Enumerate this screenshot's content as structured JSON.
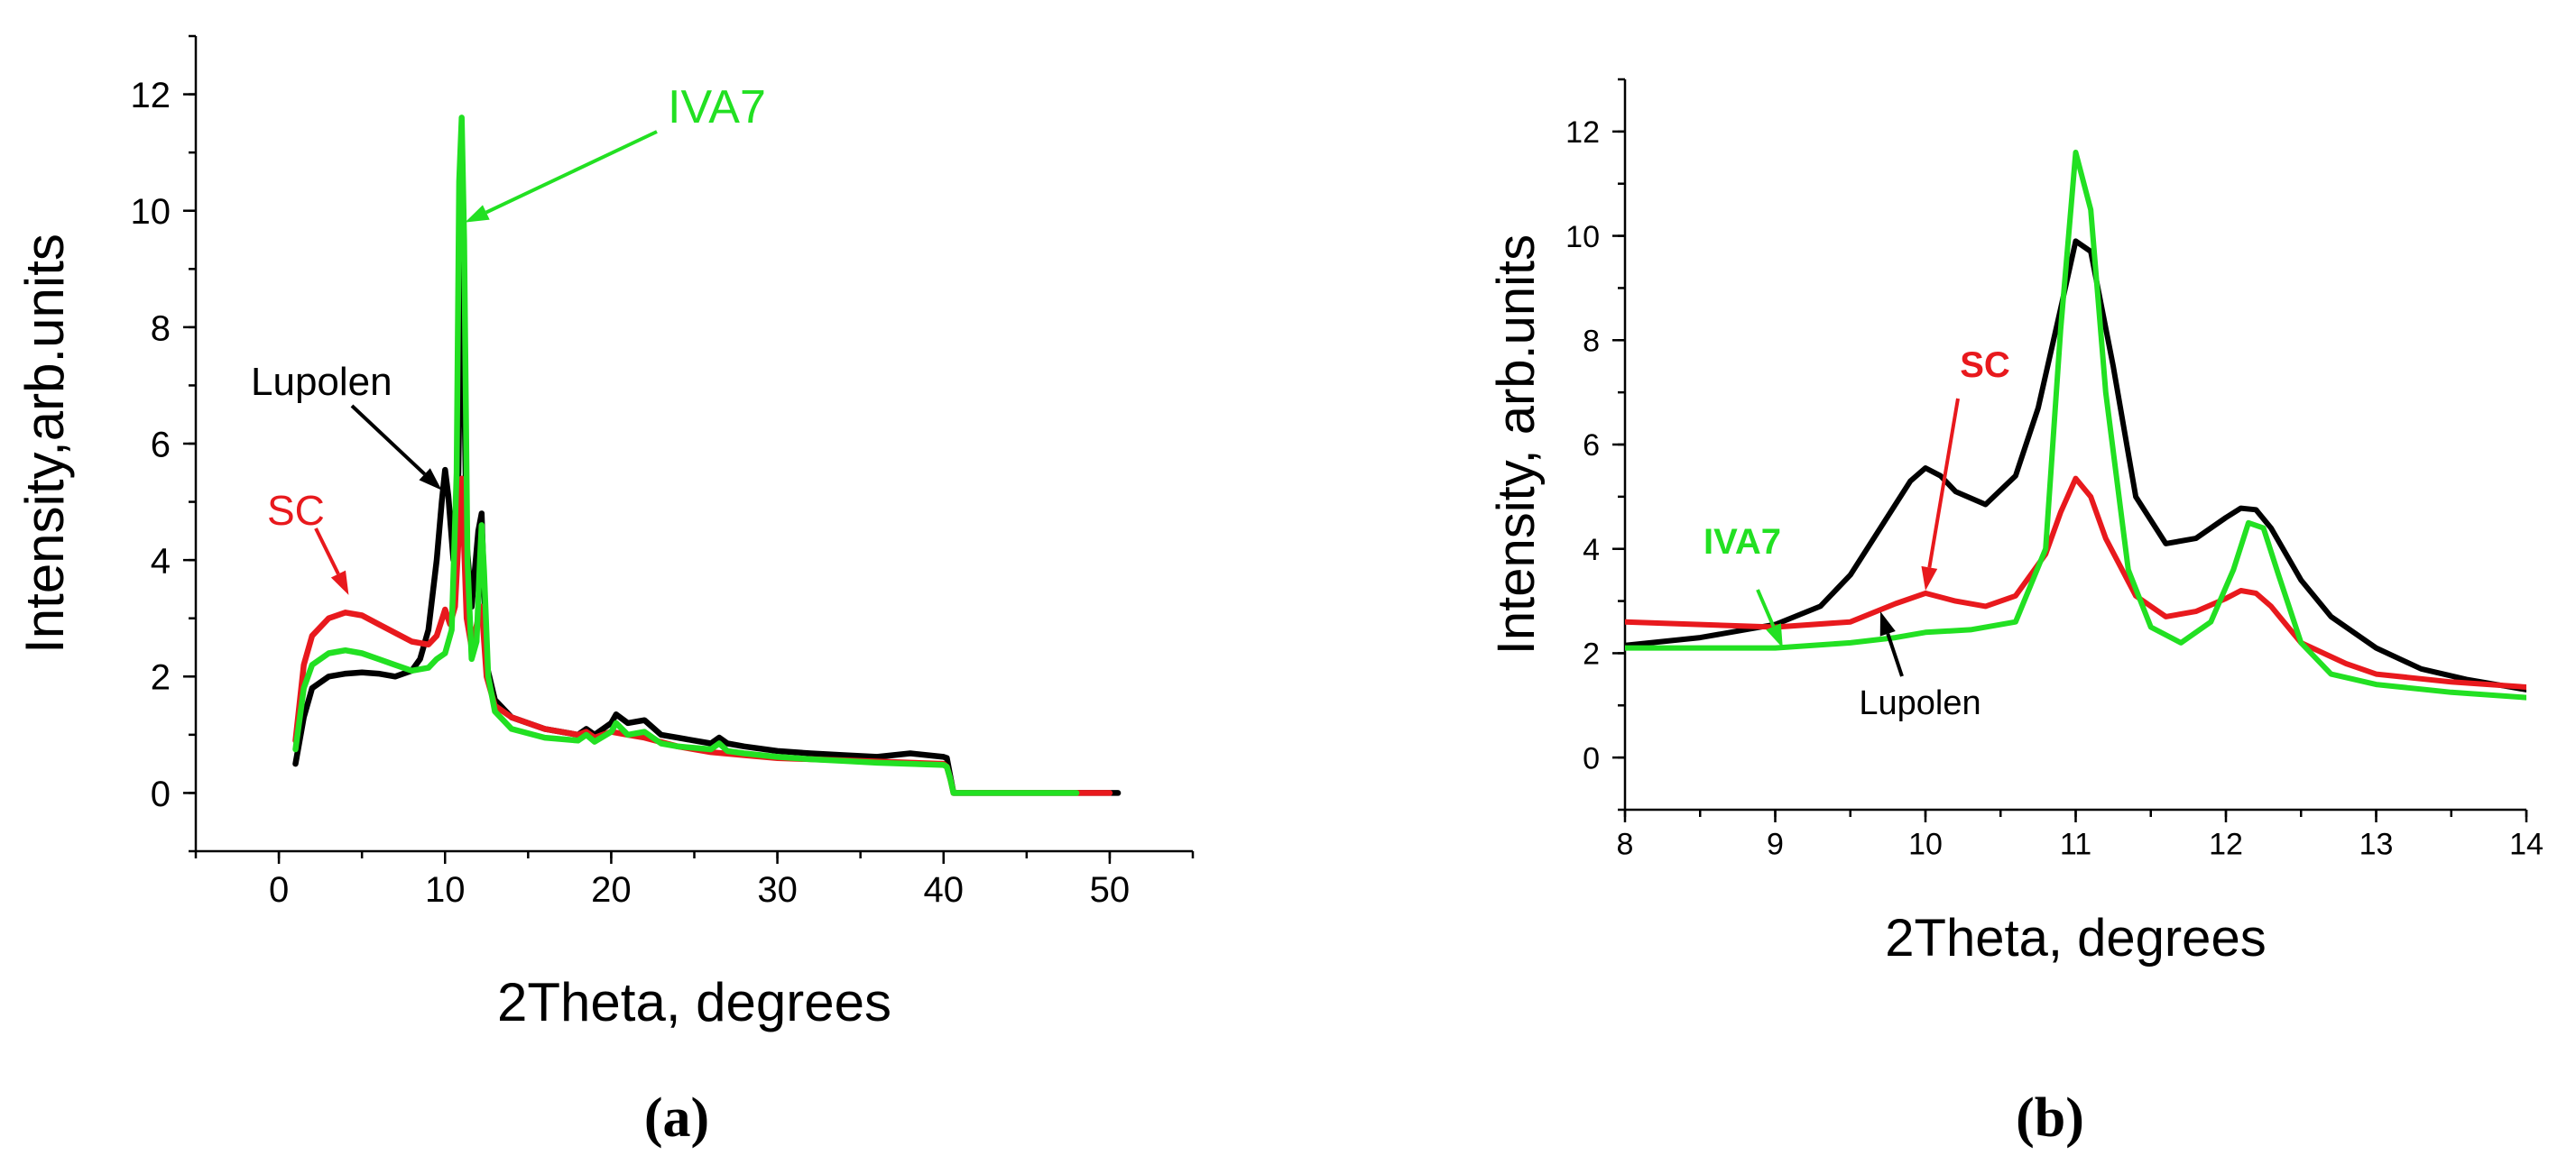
{
  "colors": {
    "lupolen": "#000000",
    "sc": "#e8191d",
    "iva7": "#22e022"
  },
  "chart_data": [
    {
      "panel": "(a)",
      "type": "line",
      "xlabel": "2Theta, degrees",
      "ylabel": "Intensity,arb.units",
      "xlim": [
        -5,
        55
      ],
      "ylim": [
        -1,
        13
      ],
      "xticks": [
        0,
        10,
        20,
        30,
        40,
        50
      ],
      "yticks": [
        0,
        2,
        4,
        6,
        8,
        10,
        12
      ],
      "xminor": 5,
      "yminor": 1,
      "series": [
        {
          "name": "Lupolen",
          "color": "#000000",
          "x": [
            1.0,
            1.5,
            2,
            3,
            4,
            5,
            6,
            7,
            8,
            8.5,
            9,
            9.5,
            9.8,
            10.0,
            10.2,
            10.5,
            10.8,
            11.0,
            11.3,
            11.6,
            12.0,
            12.2,
            12.5,
            13.0,
            14,
            16,
            18,
            18.5,
            19,
            20,
            20.3,
            21,
            22,
            23,
            24,
            25,
            26,
            26.5,
            27,
            28,
            30,
            32,
            34,
            36,
            38,
            40,
            40.2,
            40.4,
            40.6,
            42,
            44,
            46,
            48,
            50,
            50.5
          ],
          "values": [
            0.5,
            1.3,
            1.8,
            2.0,
            2.05,
            2.07,
            2.05,
            2.0,
            2.1,
            2.3,
            2.8,
            4.0,
            5.0,
            5.55,
            5.1,
            4.0,
            5.5,
            9.8,
            4.3,
            3.2,
            4.5,
            4.8,
            2.2,
            1.6,
            1.3,
            1.1,
            1.0,
            1.1,
            1.0,
            1.2,
            1.35,
            1.2,
            1.25,
            1.0,
            0.95,
            0.9,
            0.85,
            0.95,
            0.85,
            0.8,
            0.72,
            0.68,
            0.65,
            0.62,
            0.68,
            0.62,
            0.6,
            0.3,
            0.0,
            0.0,
            0.0,
            0.0,
            0.0,
            0.0,
            0.0
          ]
        },
        {
          "name": "SC",
          "color": "#e8191d",
          "x": [
            1.0,
            1.5,
            2,
            3,
            4,
            5,
            6,
            7,
            8,
            9,
            9.5,
            10.0,
            10.3,
            10.6,
            11.0,
            11.3,
            11.6,
            12.0,
            12.2,
            12.5,
            13.0,
            14,
            16,
            18,
            18.5,
            19,
            20,
            21,
            22,
            24,
            26,
            28,
            30,
            35,
            40,
            40.2,
            40.4,
            40.6,
            44,
            48,
            50
          ],
          "values": [
            0.9,
            2.2,
            2.7,
            3.0,
            3.1,
            3.05,
            2.9,
            2.75,
            2.6,
            2.55,
            2.7,
            3.15,
            2.9,
            3.2,
            5.4,
            3.0,
            2.5,
            3.0,
            3.2,
            2.0,
            1.5,
            1.3,
            1.1,
            1.0,
            1.05,
            0.95,
            1.05,
            1.0,
            0.95,
            0.8,
            0.7,
            0.65,
            0.6,
            0.55,
            0.5,
            0.45,
            0.25,
            0.0,
            0.0,
            0.0,
            0.0
          ]
        },
        {
          "name": "IVA7",
          "color": "#22e022",
          "x": [
            1.0,
            1.5,
            2,
            3,
            4,
            5,
            6,
            7,
            8,
            9,
            9.5,
            10.0,
            10.4,
            10.7,
            10.85,
            11.0,
            11.15,
            11.35,
            11.6,
            11.9,
            12.1,
            12.2,
            12.35,
            12.6,
            13.0,
            14,
            16,
            18,
            18.5,
            19,
            20,
            20.3,
            21,
            22,
            23,
            24,
            26,
            26.5,
            27,
            28,
            30,
            32,
            34,
            36,
            38,
            40,
            40.2,
            40.4,
            40.6,
            44,
            46,
            48
          ],
          "values": [
            0.75,
            1.8,
            2.2,
            2.4,
            2.45,
            2.4,
            2.3,
            2.2,
            2.1,
            2.15,
            2.3,
            2.4,
            2.8,
            5.5,
            10.5,
            11.6,
            9.5,
            4.0,
            2.3,
            2.6,
            4.0,
            4.6,
            3.8,
            2.0,
            1.4,
            1.1,
            0.95,
            0.9,
            1.0,
            0.88,
            1.05,
            1.2,
            1.0,
            1.05,
            0.85,
            0.8,
            0.75,
            0.85,
            0.72,
            0.68,
            0.62,
            0.58,
            0.55,
            0.52,
            0.5,
            0.48,
            0.45,
            0.25,
            0.0,
            0.0,
            0.0,
            0.0
          ]
        }
      ],
      "annotations": [
        {
          "text": "IVA7",
          "series": "IVA7",
          "arrow_to": [
            11.2,
            9.8
          ]
        },
        {
          "text": "Lupolen",
          "series": "Lupolen",
          "arrow_to": [
            9.8,
            5.2
          ]
        },
        {
          "text": "SC",
          "series": "SC",
          "arrow_to": [
            4.2,
            3.4
          ]
        }
      ]
    },
    {
      "panel": "(b)",
      "type": "line",
      "xlabel": "2Theta, degrees",
      "ylabel": "Intensity, arb.units",
      "xlim": [
        8,
        14
      ],
      "ylim": [
        -1,
        13
      ],
      "xticks": [
        8,
        9,
        10,
        11,
        12,
        13,
        14
      ],
      "yticks": [
        0,
        2,
        4,
        6,
        8,
        10,
        12
      ],
      "xminor": 0.5,
      "yminor": 1,
      "series": [
        {
          "name": "Lupolen",
          "color": "#000000",
          "x": [
            8.0,
            8.5,
            9.0,
            9.3,
            9.5,
            9.7,
            9.9,
            10.0,
            10.1,
            10.2,
            10.4,
            10.6,
            10.75,
            10.9,
            11.0,
            11.1,
            11.25,
            11.4,
            11.6,
            11.8,
            12.0,
            12.1,
            12.2,
            12.3,
            12.5,
            12.7,
            13.0,
            13.3,
            13.6,
            14.0
          ],
          "values": [
            2.15,
            2.3,
            2.55,
            2.9,
            3.5,
            4.4,
            5.3,
            5.55,
            5.4,
            5.1,
            4.85,
            5.4,
            6.7,
            8.6,
            9.9,
            9.7,
            7.5,
            5.0,
            4.1,
            4.2,
            4.6,
            4.78,
            4.75,
            4.4,
            3.4,
            2.7,
            2.1,
            1.7,
            1.5,
            1.3
          ]
        },
        {
          "name": "SC",
          "color": "#e8191d",
          "x": [
            8.0,
            8.5,
            9.0,
            9.5,
            9.8,
            10.0,
            10.2,
            10.4,
            10.6,
            10.8,
            10.9,
            11.0,
            11.1,
            11.2,
            11.4,
            11.6,
            11.8,
            12.0,
            12.1,
            12.2,
            12.3,
            12.5,
            12.8,
            13.0,
            13.5,
            14.0
          ],
          "values": [
            2.6,
            2.55,
            2.5,
            2.6,
            2.95,
            3.15,
            3.0,
            2.9,
            3.1,
            3.9,
            4.7,
            5.35,
            5.0,
            4.2,
            3.1,
            2.7,
            2.8,
            3.05,
            3.2,
            3.15,
            2.9,
            2.2,
            1.8,
            1.6,
            1.45,
            1.35
          ]
        },
        {
          "name": "IVA7",
          "color": "#22e022",
          "x": [
            8.0,
            8.5,
            9.0,
            9.5,
            9.8,
            10.0,
            10.3,
            10.6,
            10.8,
            10.9,
            11.0,
            11.1,
            11.2,
            11.35,
            11.5,
            11.7,
            11.9,
            12.05,
            12.15,
            12.25,
            12.35,
            12.5,
            12.7,
            13.0,
            13.5,
            14.0
          ],
          "values": [
            2.1,
            2.1,
            2.1,
            2.2,
            2.3,
            2.4,
            2.45,
            2.6,
            4.0,
            8.2,
            11.6,
            10.5,
            7.0,
            3.6,
            2.5,
            2.2,
            2.6,
            3.6,
            4.5,
            4.4,
            3.5,
            2.2,
            1.6,
            1.4,
            1.25,
            1.15
          ]
        }
      ],
      "annotations": [
        {
          "text": "SC",
          "series": "SC",
          "arrow_to": [
            10.0,
            3.2
          ]
        },
        {
          "text": "IVA7",
          "series": "IVA7",
          "arrow_to": [
            9.05,
            2.1
          ]
        },
        {
          "text": "Lupolen",
          "series": "Lupolen",
          "arrow_to": [
            9.7,
            2.8
          ]
        }
      ]
    }
  ]
}
